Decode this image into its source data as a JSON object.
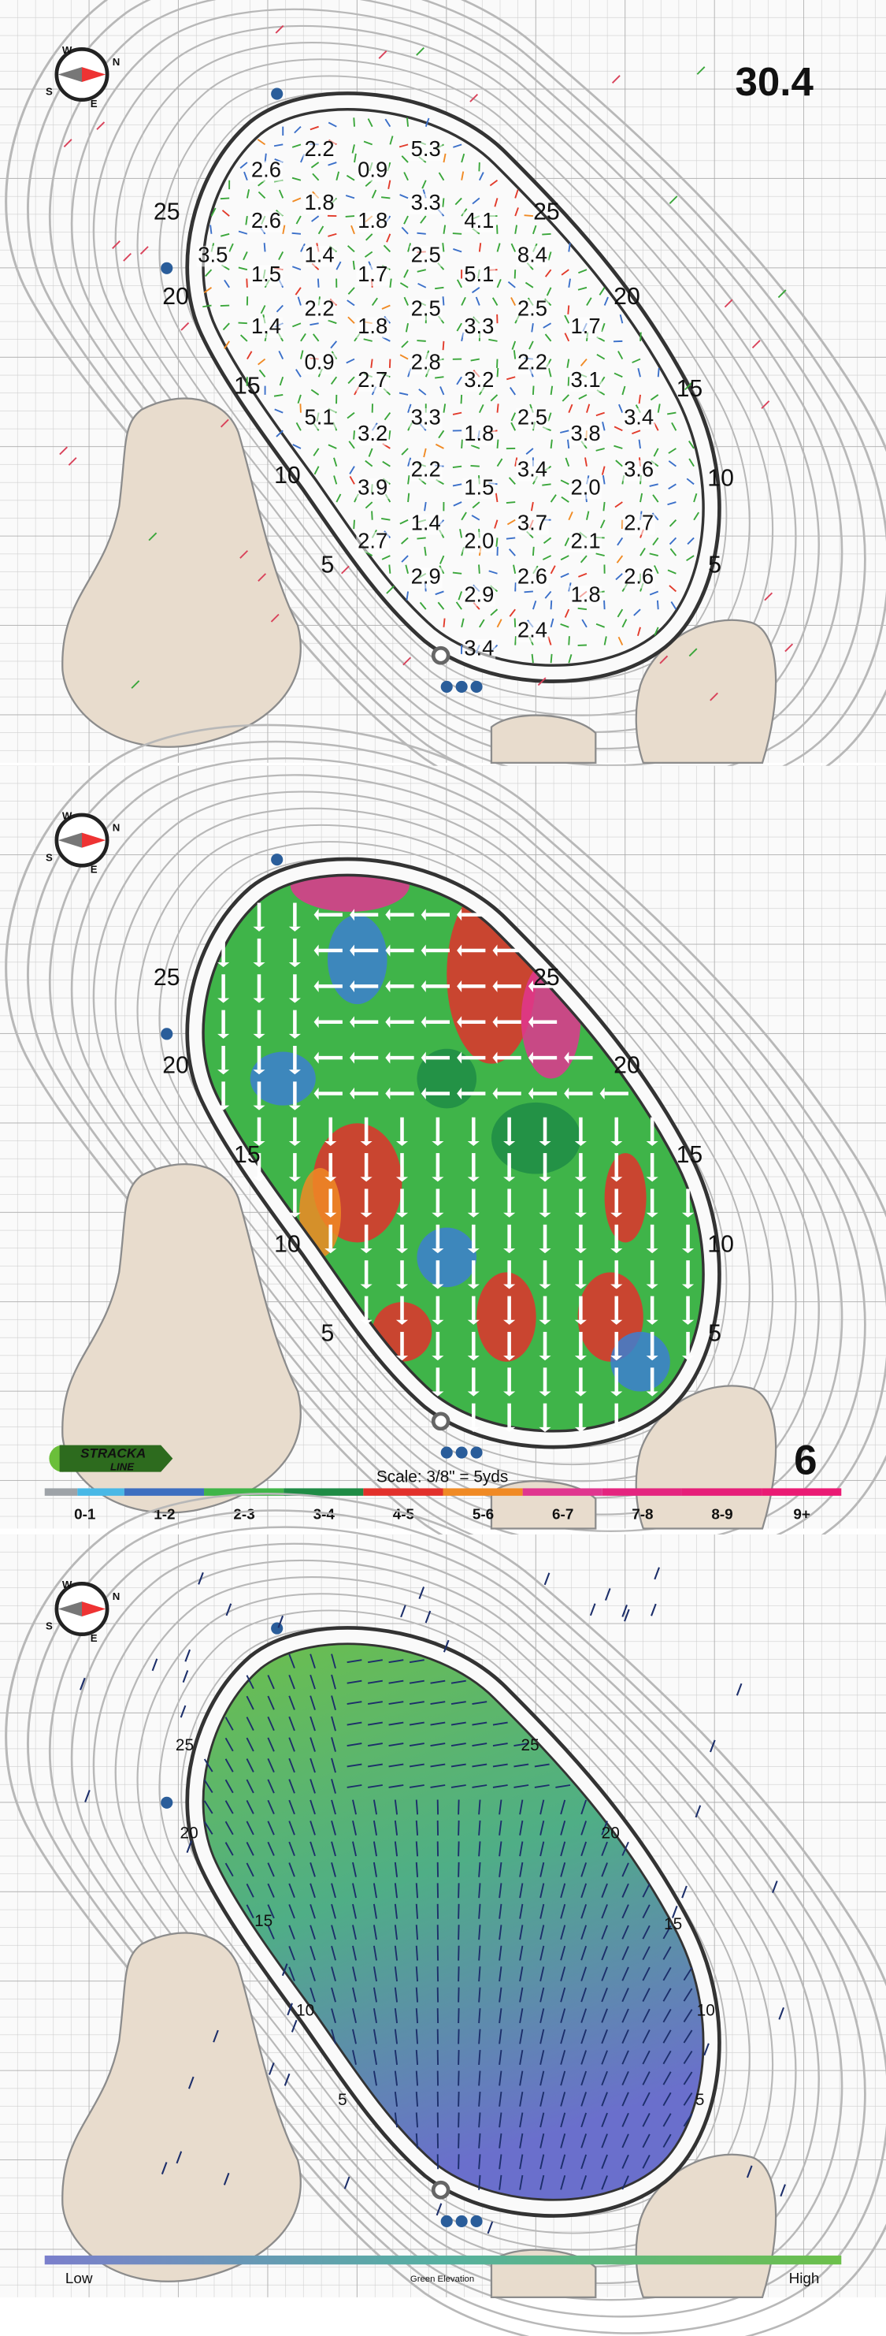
{
  "compass": [
    "W",
    "N",
    "E",
    "S"
  ],
  "top_panel": {
    "total_slope": "30.4",
    "yardages_left": [
      "25",
      "20",
      "15",
      "10",
      "5"
    ],
    "yardages_right": [
      "25",
      "20",
      "15",
      "10",
      "5"
    ],
    "slope_rows": [
      [
        null,
        null,
        "2.2",
        null,
        "5.3",
        null,
        null,
        null,
        null
      ],
      [
        null,
        "2.6",
        null,
        "0.9",
        null,
        null,
        null,
        null,
        null
      ],
      [
        null,
        null,
        "1.8",
        null,
        "3.3",
        null,
        null,
        null,
        null
      ],
      [
        null,
        "2.6",
        null,
        "1.8",
        null,
        "4.1",
        null,
        null,
        null
      ],
      [
        "3.5",
        null,
        "1.4",
        null,
        "2.5",
        null,
        "8.4",
        null,
        null
      ],
      [
        null,
        "1.5",
        null,
        "1.7",
        null,
        "5.1",
        null,
        null,
        null
      ],
      [
        null,
        null,
        "2.2",
        null,
        "2.5",
        null,
        "2.5",
        null,
        null
      ],
      [
        null,
        "1.4",
        null,
        "1.8",
        null,
        "3.3",
        null,
        "1.7",
        null
      ],
      [
        null,
        null,
        "0.9",
        null,
        "2.8",
        null,
        "2.2",
        null,
        null
      ],
      [
        null,
        null,
        null,
        "2.7",
        null,
        "3.2",
        null,
        "3.1",
        null
      ],
      [
        null,
        null,
        "5.1",
        null,
        "3.3",
        null,
        "2.5",
        null,
        "3.4"
      ],
      [
        null,
        null,
        null,
        "3.2",
        null,
        "1.8",
        null,
        "3.8",
        null
      ],
      [
        null,
        null,
        null,
        null,
        "2.2",
        null,
        "3.4",
        null,
        "3.6"
      ],
      [
        null,
        null,
        null,
        "3.9",
        null,
        "1.5",
        null,
        "2.0",
        null
      ],
      [
        null,
        null,
        null,
        null,
        "1.4",
        null,
        "3.7",
        null,
        "2.7"
      ],
      [
        null,
        null,
        null,
        "2.7",
        null,
        "2.0",
        null,
        "2.1",
        null
      ],
      [
        null,
        null,
        null,
        null,
        "2.9",
        null,
        "2.6",
        null,
        "2.6"
      ],
      [
        null,
        null,
        null,
        null,
        null,
        "2.9",
        null,
        "1.8",
        null
      ],
      [
        null,
        null,
        null,
        null,
        null,
        null,
        "2.4",
        null,
        null
      ],
      [
        null,
        null,
        null,
        null,
        null,
        "3.4",
        null,
        null,
        null
      ]
    ]
  },
  "middle_panel": {
    "yardages_left": [
      "25",
      "20",
      "15",
      "10",
      "5"
    ],
    "yardages_right": [
      "25",
      "20",
      "15",
      "10",
      "5"
    ],
    "logo": [
      "STRACKA",
      "LINE"
    ],
    "scale": "Scale: 3/8\" = 5yds",
    "hole_number": "6",
    "legend": [
      {
        "label": "0-1",
        "color": "#49b8e6"
      },
      {
        "label": "1-2",
        "color": "#3d6fc0"
      },
      {
        "label": "2-3",
        "color": "#40b549"
      },
      {
        "label": "3-4",
        "color": "#1f8c45"
      },
      {
        "label": "4-5",
        "color": "#e2312b"
      },
      {
        "label": "5-6",
        "color": "#f08a24"
      },
      {
        "label": "6-7",
        "color": "#e0368f"
      },
      {
        "label": "7-8",
        "color": "#e4257f"
      },
      {
        "label": "8-9",
        "color": "#e61e79"
      },
      {
        "label": "9+",
        "color": "#ea1b74"
      }
    ]
  },
  "bottom_panel": {
    "yardages_left": [
      "25",
      "20",
      "15",
      "10",
      "5"
    ],
    "yardages_right": [
      "25",
      "20",
      "15",
      "10",
      "5"
    ],
    "low": "Low",
    "title": "Green Elevation",
    "high": "High"
  }
}
